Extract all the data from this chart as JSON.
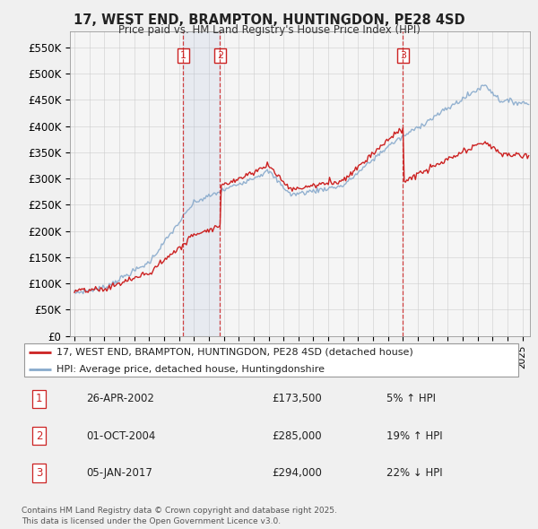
{
  "title1": "17, WEST END, BRAMPTON, HUNTINGDON, PE28 4SD",
  "title2": "Price paid vs. HM Land Registry's House Price Index (HPI)",
  "ylabel_ticks": [
    "£0",
    "£50K",
    "£100K",
    "£150K",
    "£200K",
    "£250K",
    "£300K",
    "£350K",
    "£400K",
    "£450K",
    "£500K",
    "£550K"
  ],
  "ytick_values": [
    0,
    50000,
    100000,
    150000,
    200000,
    250000,
    300000,
    350000,
    400000,
    450000,
    500000,
    550000
  ],
  "ylim": [
    0,
    580000
  ],
  "legend_line1": "17, WEST END, BRAMPTON, HUNTINGDON, PE28 4SD (detached house)",
  "legend_line2": "HPI: Average price, detached house, Huntingdonshire",
  "sale1_date": "26-APR-2002",
  "sale1_price": "£173,500",
  "sale1_pct": "5% ↑ HPI",
  "sale2_date": "01-OCT-2004",
  "sale2_price": "£285,000",
  "sale2_pct": "19% ↑ HPI",
  "sale3_date": "05-JAN-2017",
  "sale3_price": "£294,000",
  "sale3_pct": "22% ↓ HPI",
  "footnote1": "Contains HM Land Registry data © Crown copyright and database right 2025.",
  "footnote2": "This data is licensed under the Open Government Licence v3.0.",
  "sale_color": "#cc2222",
  "hpi_color": "#88aacc",
  "background_color": "#f0f0f0",
  "plot_bg_color": "#f5f5f5",
  "grid_color": "#cccccc"
}
